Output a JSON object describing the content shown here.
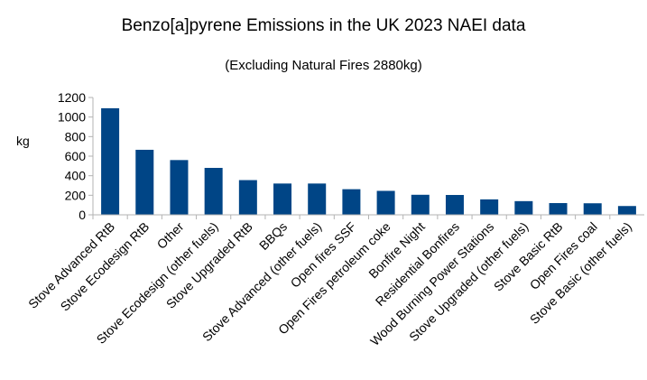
{
  "chart_data": {
    "type": "bar",
    "title": "Benzo[a]pyrene Emissions in the UK 2023 NAEI data",
    "subtitle": "(Excluding Natural Fires 2880kg)",
    "xlabel": "",
    "ylabel": "kg",
    "ylim": [
      0,
      1200
    ],
    "yticks": [
      0,
      200,
      400,
      600,
      800,
      1000,
      1200
    ],
    "grid": false,
    "legend": "none",
    "bar_color": "#004586",
    "categories": [
      "Stove Advanced RtB",
      "Stove Ecodesign RtB",
      "Other",
      "Stove Ecodesign (other fuels)",
      "Stove Upgraded RtB",
      "BBQs",
      "Stove Advanced (other fuels)",
      "Open fires SSF",
      "Open Fires petroleum coke",
      "Bonfire Night",
      "Residential Bonfires",
      "Wood Burning Power Stations",
      "Stove Upgraded (other fuels)",
      "Stove Basic RtB",
      "Open Fires coal",
      "Stove Basic (other fuels)"
    ],
    "values": [
      1090,
      665,
      560,
      480,
      355,
      320,
      320,
      262,
      245,
      205,
      203,
      158,
      140,
      120,
      118,
      90
    ]
  }
}
